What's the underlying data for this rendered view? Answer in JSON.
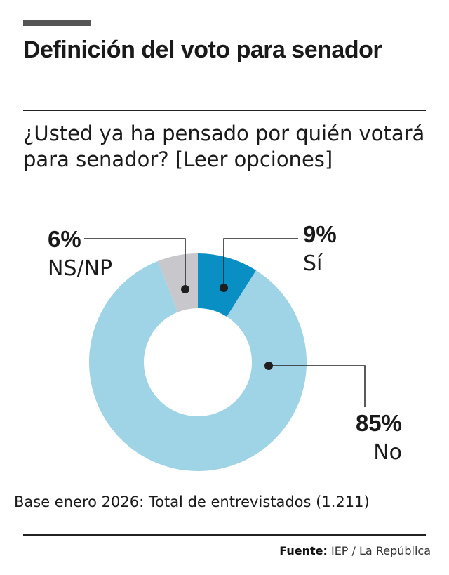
{
  "title": "Definición del voto para senador",
  "question": "¿Usted ya ha pensado por quién votará para senador? [Leer opciones]",
  "chart_data": {
    "type": "pie",
    "variant": "donut",
    "categories": [
      "Sí",
      "No",
      "NS/NP"
    ],
    "values": [
      9,
      85,
      6
    ],
    "labels": [
      "9%",
      "85%",
      "6%"
    ],
    "colors": [
      "#0a8fc4",
      "#9fd3e6",
      "#c8c8cc"
    ],
    "start": "top",
    "direction": "clockwise"
  },
  "base_note": "Base enero 2026: Total de entrevistados (1.211)",
  "source": {
    "label": "Fuente:",
    "value": "IEP / La República"
  }
}
